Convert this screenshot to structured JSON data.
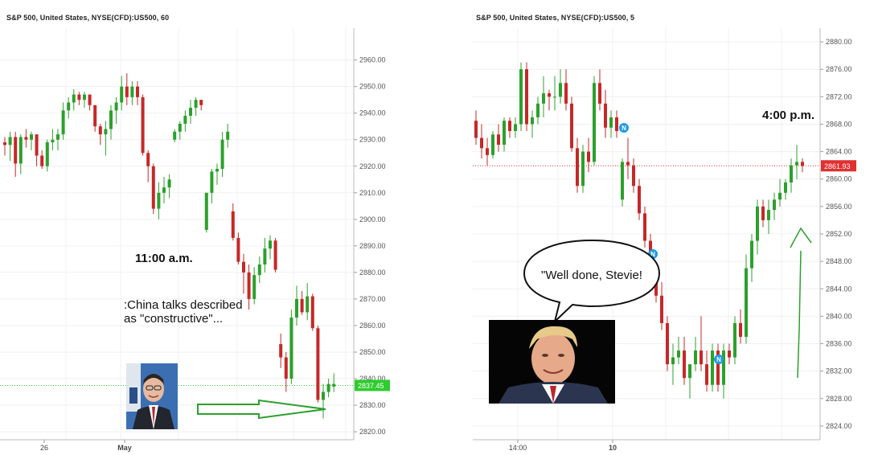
{
  "chart_data": [
    {
      "type": "candlestick",
      "title": "S&P 500, United States, NYSE(CFD):US500, 60",
      "ylim": [
        2817,
        2972
      ],
      "y_ticks": [
        "2960.00",
        "2950.00",
        "2940.00",
        "2930.00",
        "2920.00",
        "2910.00",
        "2900.00",
        "2890.00",
        "2880.00",
        "2870.00",
        "2860.00",
        "2850.00",
        "2840.00",
        "2830.00",
        "2820.00"
      ],
      "x_tick_labels": [
        {
          "label": "26",
          "bold": false
        },
        {
          "label": "May",
          "bold": true
        }
      ],
      "last_price_label": "2837.45",
      "last_price": 2837.45,
      "up_color": "#2ca02c",
      "down_color": "#c62828",
      "candles_ohlc": [
        [
          2929,
          2931,
          2924,
          2928
        ],
        [
          2928,
          2933,
          2922,
          2931
        ],
        [
          2931,
          2933,
          2916,
          2921
        ],
        [
          2921,
          2932,
          2917,
          2931
        ],
        [
          2931,
          2934,
          2927,
          2930
        ],
        [
          2930,
          2933,
          2926,
          2932
        ],
        [
          2932,
          2932,
          2920,
          2924
        ],
        [
          2924,
          2926,
          2919,
          2920
        ],
        [
          2920,
          2930,
          2918,
          2929
        ],
        [
          2929,
          2934,
          2926,
          2930
        ],
        [
          2930,
          2934,
          2926,
          2932
        ],
        [
          2932,
          2944,
          2930,
          2941
        ],
        [
          2941,
          2946,
          2938,
          2944
        ],
        [
          2944,
          2949,
          2941,
          2947
        ],
        [
          2947,
          2948,
          2943,
          2945
        ],
        [
          2945,
          2948,
          2942,
          2947
        ],
        [
          2947,
          2947,
          2941,
          2943
        ],
        [
          2943,
          2943,
          2933,
          2935
        ],
        [
          2935,
          2936,
          2928,
          2932
        ],
        [
          2932,
          2937,
          2924,
          2934
        ],
        [
          2934,
          2943,
          2930,
          2941
        ],
        [
          2941,
          2946,
          2936,
          2944
        ],
        [
          2944,
          2954,
          2941,
          2950
        ],
        [
          2950,
          2955,
          2943,
          2946
        ],
        [
          2946,
          2952,
          2943,
          2950
        ],
        [
          2950,
          2952,
          2943,
          2946
        ],
        [
          2946,
          2947,
          2924,
          2925
        ],
        [
          2925,
          2926,
          2914,
          2920
        ],
        [
          2920,
          2921,
          2902,
          2904
        ],
        [
          2904,
          2914,
          2900,
          2910
        ],
        [
          2910,
          2916,
          2906,
          2912
        ],
        [
          2912,
          2917,
          2908,
          2915
        ],
        [
          2930,
          2934,
          2929,
          2933
        ],
        [
          2933,
          2937,
          2930,
          2936
        ],
        [
          2936,
          2941,
          2933,
          2939
        ],
        [
          2939,
          2945,
          2936,
          2942
        ],
        [
          2942,
          2946,
          2939,
          2945
        ],
        [
          2945,
          2945,
          2941,
          2943
        ],
        [
          2896,
          2910,
          2895,
          2910
        ],
        [
          2910,
          2919,
          2906,
          2918
        ],
        [
          2918,
          2921,
          2913,
          2919
        ],
        [
          2919,
          2933,
          2916,
          2930
        ],
        [
          2930,
          2936,
          2927,
          2933
        ],
        [
          2903,
          2906,
          2892,
          2893
        ],
        [
          2893,
          2895,
          2883,
          2884
        ],
        [
          2884,
          2887,
          2872,
          2880
        ],
        [
          2880,
          2883,
          2866,
          2870
        ],
        [
          2870,
          2882,
          2868,
          2879
        ],
        [
          2879,
          2886,
          2876,
          2883
        ],
        [
          2883,
          2893,
          2880,
          2889
        ],
        [
          2889,
          2894,
          2885,
          2892
        ],
        [
          2892,
          2893,
          2880,
          2881
        ],
        [
          2853,
          2857,
          2844,
          2848
        ],
        [
          2848,
          2850,
          2835,
          2840
        ],
        [
          2840,
          2866,
          2838,
          2863
        ],
        [
          2863,
          2875,
          2860,
          2870
        ],
        [
          2870,
          2873,
          2864,
          2865
        ],
        [
          2865,
          2876,
          2862,
          2871
        ],
        [
          2871,
          2872,
          2858,
          2859
        ],
        [
          2859,
          2860,
          2831,
          2832
        ],
        [
          2832,
          2838,
          2825,
          2835
        ],
        [
          2835,
          2840,
          2833,
          2838
        ],
        [
          2837,
          2842,
          2835,
          2838
        ]
      ]
    },
    {
      "type": "candlestick",
      "title": "S&P 500, United States, NYSE(CFD):US500, 5",
      "ylim": [
        2822,
        2882
      ],
      "y_ticks": [
        "2880.00",
        "2876.00",
        "2872.00",
        "2868.00",
        "2864.00",
        "2860.00",
        "2856.00",
        "2852.00",
        "2848.00",
        "2844.00",
        "2840.00",
        "2836.00",
        "2832.00",
        "2828.00",
        "2824.00"
      ],
      "x_tick_labels": [
        {
          "label": "14:00",
          "bold": false
        },
        {
          "label": "10",
          "bold": true
        }
      ],
      "last_price_label": "2861.93",
      "last_price": 2861.93,
      "news_markers": [
        "N",
        "N",
        "N"
      ],
      "up_color": "#2ca02c",
      "down_color": "#c62828",
      "candles_ohlc": [
        [
          2868.5,
          2870,
          2865,
          2866
        ],
        [
          2866,
          2868,
          2863,
          2864.5
        ],
        [
          2864.5,
          2866,
          2862,
          2863.5
        ],
        [
          2863.5,
          2867,
          2863,
          2866.5
        ],
        [
          2866.5,
          2868,
          2864,
          2865
        ],
        [
          2865,
          2869,
          2864,
          2868.5
        ],
        [
          2868.5,
          2869,
          2866,
          2867
        ],
        [
          2867,
          2869,
          2866,
          2868
        ],
        [
          2868,
          2877,
          2867,
          2876
        ],
        [
          2876,
          2877,
          2867,
          2868
        ],
        [
          2868,
          2870,
          2866,
          2869
        ],
        [
          2869,
          2872,
          2868,
          2871
        ],
        [
          2871,
          2875,
          2869,
          2872.5
        ],
        [
          2872.5,
          2873,
          2870,
          2872
        ],
        [
          2872,
          2875,
          2870,
          2872
        ],
        [
          2872,
          2876,
          2871,
          2874
        ],
        [
          2874,
          2876,
          2870,
          2871
        ],
        [
          2871,
          2872,
          2864,
          2864.5
        ],
        [
          2864.5,
          2866,
          2858,
          2859
        ],
        [
          2859,
          2865,
          2858,
          2864
        ],
        [
          2864,
          2866,
          2861,
          2862.5
        ],
        [
          2862.5,
          2875,
          2862,
          2874
        ],
        [
          2874,
          2876,
          2870,
          2871
        ],
        [
          2871,
          2873,
          2866,
          2867.5
        ],
        [
          2867.5,
          2870,
          2866,
          2869
        ],
        [
          2869,
          2870,
          2866,
          2867
        ],
        [
          2857,
          2863,
          2856,
          2862.5
        ],
        [
          2862.5,
          2866,
          2860,
          2862
        ],
        [
          2862,
          2863,
          2858,
          2859
        ],
        [
          2859,
          2860,
          2854,
          2855
        ],
        [
          2855,
          2856,
          2850,
          2851
        ],
        [
          2851,
          2852,
          2846,
          2847
        ],
        [
          2847,
          2848,
          2842,
          2843
        ],
        [
          2843,
          2845,
          2838,
          2839
        ],
        [
          2839,
          2840,
          2832,
          2833
        ],
        [
          2833,
          2836,
          2830,
          2834
        ],
        [
          2834,
          2837,
          2833,
          2835
        ],
        [
          2835,
          2837,
          2830,
          2831
        ],
        [
          2831,
          2833,
          2828,
          2833
        ],
        [
          2833,
          2837,
          2832,
          2835
        ],
        [
          2835,
          2840,
          2832,
          2833
        ],
        [
          2833,
          2835,
          2829,
          2830
        ],
        [
          2830,
          2836,
          2829,
          2835
        ],
        [
          2835,
          2836,
          2829,
          2830
        ],
        [
          2830,
          2836,
          2828,
          2835
        ],
        [
          2835,
          2836,
          2833,
          2834
        ],
        [
          2834,
          2840,
          2833,
          2839
        ],
        [
          2839,
          2841,
          2836,
          2837
        ],
        [
          2837,
          2849,
          2836,
          2847
        ],
        [
          2847,
          2852,
          2845,
          2851
        ],
        [
          2851,
          2857,
          2849,
          2856
        ],
        [
          2856,
          2857,
          2853,
          2854
        ],
        [
          2854,
          2857,
          2852,
          2855.5
        ],
        [
          2855.5,
          2858,
          2854,
          2857
        ],
        [
          2857,
          2860,
          2856,
          2858
        ],
        [
          2858,
          2860,
          2857,
          2859.5
        ],
        [
          2859.5,
          2863,
          2858,
          2862
        ],
        [
          2862,
          2865,
          2860,
          2862.5
        ],
        [
          2862.5,
          2863,
          2861,
          2861.93
        ]
      ]
    }
  ],
  "left_annotations": {
    "time": "11:00 a.m.",
    "text": ":China talks described as \"constructive\"..."
  },
  "right_annotations": {
    "time": "4:00 p.m.",
    "bubble": "\"Well done, Stevie!"
  }
}
